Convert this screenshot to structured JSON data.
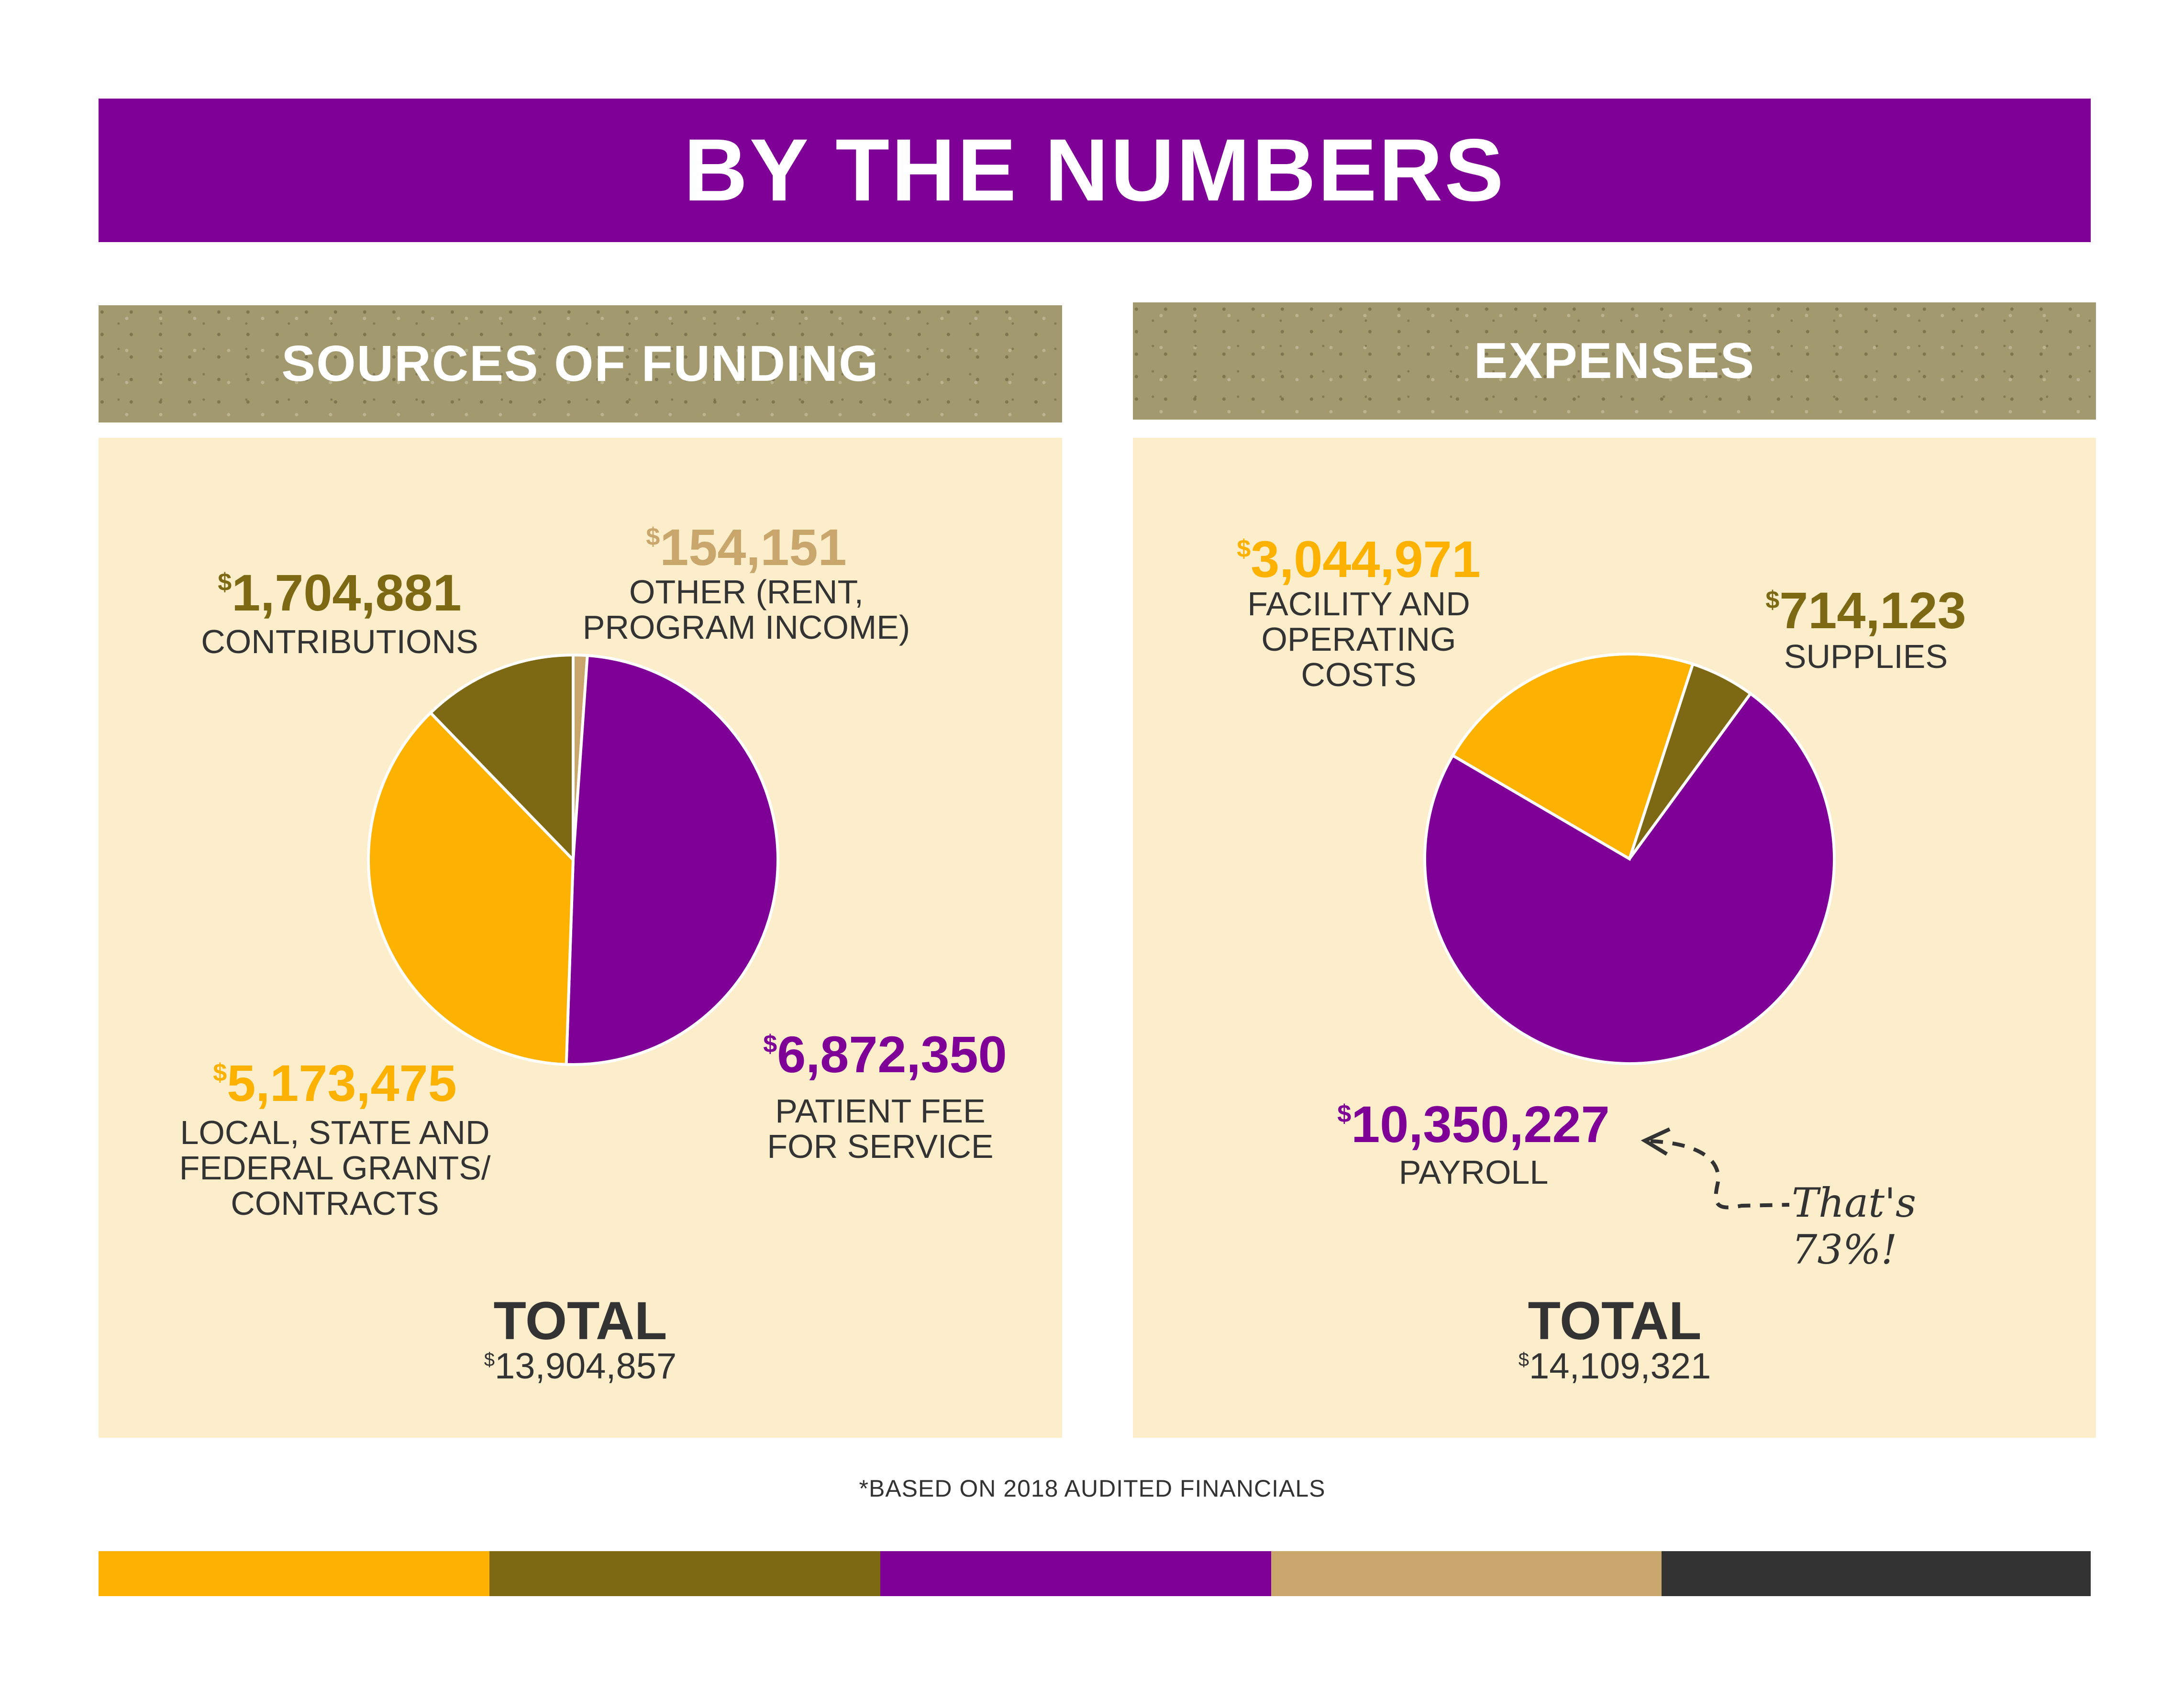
{
  "title": "BY THE NUMBERS",
  "colors": {
    "purple": "#7f0096",
    "gold": "#fdb100",
    "olive": "#7d6913",
    "tan": "#c9a76c",
    "charcoal": "#333333",
    "panel": "#fdeecb",
    "header_texture": "#a3996f"
  },
  "funding": {
    "header": "SOURCES OF FUNDING",
    "total_label": "TOTAL",
    "total_dollar": "$",
    "total_value": "13,904,857",
    "slices": [
      {
        "dollar": "$",
        "amount": "154,151",
        "label_lines": [
          "OTHER (RENT,",
          "PROGRAM INCOME)"
        ],
        "color": "#c9a76c"
      },
      {
        "dollar": "$",
        "amount": "6,872,350",
        "label_lines": [
          "PATIENT FEE",
          "FOR SERVICE"
        ],
        "color": "#7f0096"
      },
      {
        "dollar": "$",
        "amount": "5,173,475",
        "label_lines": [
          "LOCAL, STATE AND",
          "FEDERAL GRANTS/",
          "CONTRACTS"
        ],
        "color": "#fdb100"
      },
      {
        "dollar": "$",
        "amount": "1,704,881",
        "label_lines": [
          "CONTRIBUTIONS"
        ],
        "color": "#7d6913"
      }
    ]
  },
  "expenses": {
    "header": "EXPENSES",
    "total_label": "TOTAL",
    "total_dollar": "$",
    "total_value": "14,109,321",
    "note": "That's 73%!",
    "slices": [
      {
        "dollar": "$",
        "amount": "714,123",
        "label_lines": [
          "SUPPLIES"
        ],
        "color": "#7d6913"
      },
      {
        "dollar": "$",
        "amount": "10,350,227",
        "label_lines": [
          "PAYROLL"
        ],
        "color": "#7f0096"
      },
      {
        "dollar": "$",
        "amount": "3,044,971",
        "label_lines": [
          "FACILITY AND",
          "OPERATING",
          "COSTS"
        ],
        "color": "#fdb100"
      }
    ]
  },
  "footnote": "*BASED ON 2018 AUDITED FINANCIALS",
  "stripes": [
    "#fdb100",
    "#7d6913",
    "#7f0096",
    "#c9a76c",
    "#333333"
  ],
  "chart_data": [
    {
      "type": "pie",
      "title": "SOURCES OF FUNDING",
      "categories": [
        "OTHER (RENT, PROGRAM INCOME)",
        "PATIENT FEE FOR SERVICE",
        "LOCAL, STATE AND FEDERAL GRANTS/ CONTRACTS",
        "CONTRIBUTIONS"
      ],
      "values": [
        154151,
        6872350,
        5173475,
        1704881
      ],
      "colors": [
        "#c9a76c",
        "#7f0096",
        "#fdb100",
        "#7d6913"
      ],
      "total": 13904857,
      "legend": "none"
    },
    {
      "type": "pie",
      "title": "EXPENSES",
      "categories": [
        "SUPPLIES",
        "PAYROLL",
        "FACILITY AND OPERATING COSTS"
      ],
      "values": [
        714123,
        10350227,
        3044971
      ],
      "colors": [
        "#7d6913",
        "#7f0096",
        "#fdb100"
      ],
      "total": 14109321,
      "legend": "none",
      "annotations": [
        "That's 73%!"
      ]
    }
  ]
}
